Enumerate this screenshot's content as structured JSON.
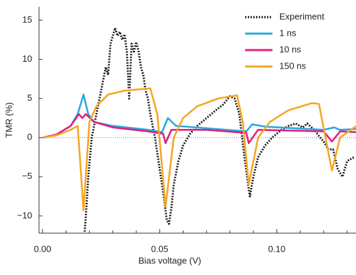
{
  "chart_data": {
    "type": "line",
    "x_label": "Bias voltage (V)",
    "y_label": "TMR (%)",
    "xlim": [
      -0.0015,
      0.1338
    ],
    "ylim": [
      -12.2,
      16.7
    ],
    "xticks": [
      {
        "value": 0,
        "label": "0.00"
      },
      {
        "value": 0.05,
        "label": "0.05"
      },
      {
        "value": 0.1,
        "label": "0.10"
      }
    ],
    "xminor_ticks": [
      0.01,
      0.02,
      0.03,
      0.04,
      0.06,
      0.07,
      0.08,
      0.09,
      0.11,
      0.12,
      0.13
    ],
    "yticks": [
      {
        "value": -10,
        "label": "−10"
      },
      {
        "value": -5,
        "label": "−5"
      },
      0,
      5,
      10,
      15
    ],
    "zero_line": true,
    "legend": "upper right",
    "series": [
      {
        "name": "Experiment",
        "color": "#1a1a1a",
        "dashed": true,
        "x": [
          0.018,
          0.0185,
          0.0195,
          0.021,
          0.023,
          0.025,
          0.027,
          0.028,
          0.029,
          0.03,
          0.031,
          0.032,
          0.033,
          0.034,
          0.035,
          0.036,
          0.037,
          0.038,
          0.039,
          0.04,
          0.041,
          0.042,
          0.043,
          0.044,
          0.045,
          0.046,
          0.048,
          0.05,
          0.052,
          0.053,
          0.054,
          0.055,
          0.056,
          0.058,
          0.06,
          0.063,
          0.066,
          0.07,
          0.074,
          0.077,
          0.08,
          0.082,
          0.084,
          0.086,
          0.088,
          0.0885,
          0.09,
          0.092,
          0.095,
          0.098,
          0.102,
          0.105,
          0.108,
          0.111,
          0.113,
          0.116,
          0.118,
          0.12,
          0.122,
          0.124,
          0.126,
          0.128,
          0.13,
          0.133
        ],
        "values": [
          -12,
          -10,
          -5,
          0,
          3,
          6,
          9,
          8,
          12,
          13,
          14,
          13,
          13.5,
          12.5,
          13.2,
          11,
          5,
          12,
          11,
          12.2,
          11,
          9,
          8,
          6,
          5,
          3,
          0,
          -4,
          -8,
          -10.5,
          -11,
          -9,
          -6,
          -3,
          -1,
          0.5,
          1.5,
          2.5,
          3.5,
          4.2,
          5.3,
          5,
          3,
          -2,
          -6.5,
          -7.5,
          -5,
          -2.5,
          -1,
          0,
          1,
          1.5,
          1.8,
          1.3,
          1.8,
          1,
          0.2,
          -0.5,
          -1.5,
          -1.5,
          -4,
          -5,
          -3,
          -2.5
        ]
      },
      {
        "name": "1 ns",
        "color": "#29a8e0",
        "x": [
          0,
          0.006,
          0.012,
          0.015,
          0.0175,
          0.0195,
          0.022,
          0.03,
          0.045,
          0.051,
          0.0535,
          0.057,
          0.07,
          0.087,
          0.0895,
          0.095,
          0.12,
          0.1245,
          0.127,
          0.134
        ],
        "values": [
          0,
          0.4,
          1.5,
          3,
          5.5,
          3,
          2,
          1.5,
          1,
          0.7,
          2.5,
          1.5,
          1.2,
          0.8,
          1.7,
          1.4,
          1,
          1.3,
          1,
          1.1
        ]
      },
      {
        "name": "10 ns",
        "color": "#e0207f",
        "x": [
          0,
          0.006,
          0.012,
          0.0155,
          0.017,
          0.0185,
          0.022,
          0.03,
          0.045,
          0.0515,
          0.0525,
          0.055,
          0.07,
          0.087,
          0.088,
          0.092,
          0.12,
          0.1235,
          0.127,
          0.134
        ],
        "values": [
          0,
          0.4,
          1.5,
          3,
          2.5,
          3,
          2,
          1.3,
          0.8,
          0.5,
          -0.7,
          1,
          1,
          0.6,
          -0.7,
          1,
          0.8,
          -0.5,
          0.8,
          0.7
        ]
      },
      {
        "name": "150 ns",
        "color": "#f5a623",
        "x": [
          0,
          0.006,
          0.012,
          0.015,
          0.0175,
          0.02,
          0.023,
          0.028,
          0.035,
          0.046,
          0.049,
          0.0525,
          0.056,
          0.06,
          0.066,
          0.075,
          0.083,
          0.0855,
          0.088,
          0.092,
          0.097,
          0.105,
          0.115,
          0.118,
          0.1235,
          0.127,
          0.134
        ],
        "values": [
          0,
          0.3,
          1,
          1.5,
          -9.3,
          2,
          4,
          5.5,
          6,
          6.3,
          3,
          -8.8,
          0,
          2.5,
          4,
          5,
          5.4,
          2,
          -6,
          0,
          2,
          3.5,
          4.4,
          4.3,
          -4.2,
          0,
          1.5
        ]
      }
    ]
  }
}
